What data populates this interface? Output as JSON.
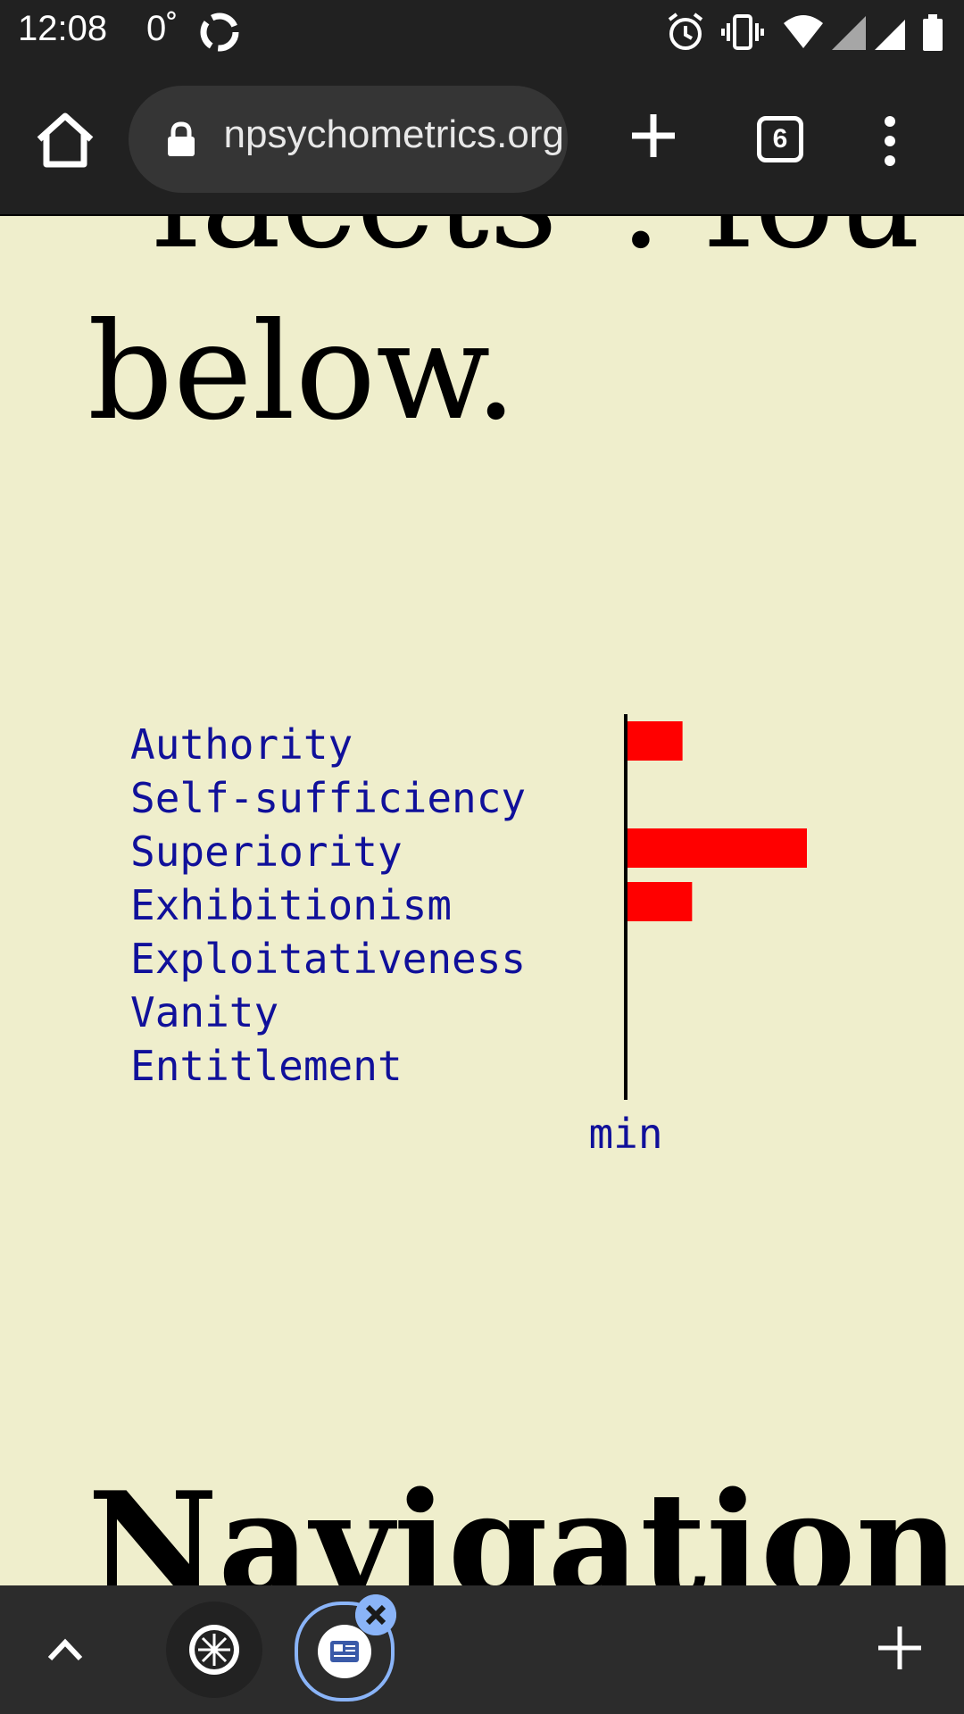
{
  "status_bar": {
    "time": "12:08",
    "temperature": "0˚"
  },
  "browser": {
    "url": "openpsychometrics.org",
    "tab_count": "6"
  },
  "page": {
    "heading_fragment": "facets\". fou",
    "heading_tail": "below.",
    "navigation_heading": "Navigation"
  },
  "chart_data": {
    "type": "bar",
    "orientation": "horizontal",
    "categories": [
      "Authority",
      "Self-sufficiency",
      "Superiority",
      "Exhibitionism",
      "Exploitativeness",
      "Vanity",
      "Entitlement"
    ],
    "values": [
      0.23,
      0.0,
      0.75,
      0.27,
      0.0,
      0.0,
      0.0
    ],
    "xlabel": "min",
    "bar_color": "#ff0000",
    "label_color": "#10109a"
  },
  "colors": {
    "page_background": "#efeecc",
    "toolbar": "#212121",
    "accent": "#8ab4f8"
  }
}
